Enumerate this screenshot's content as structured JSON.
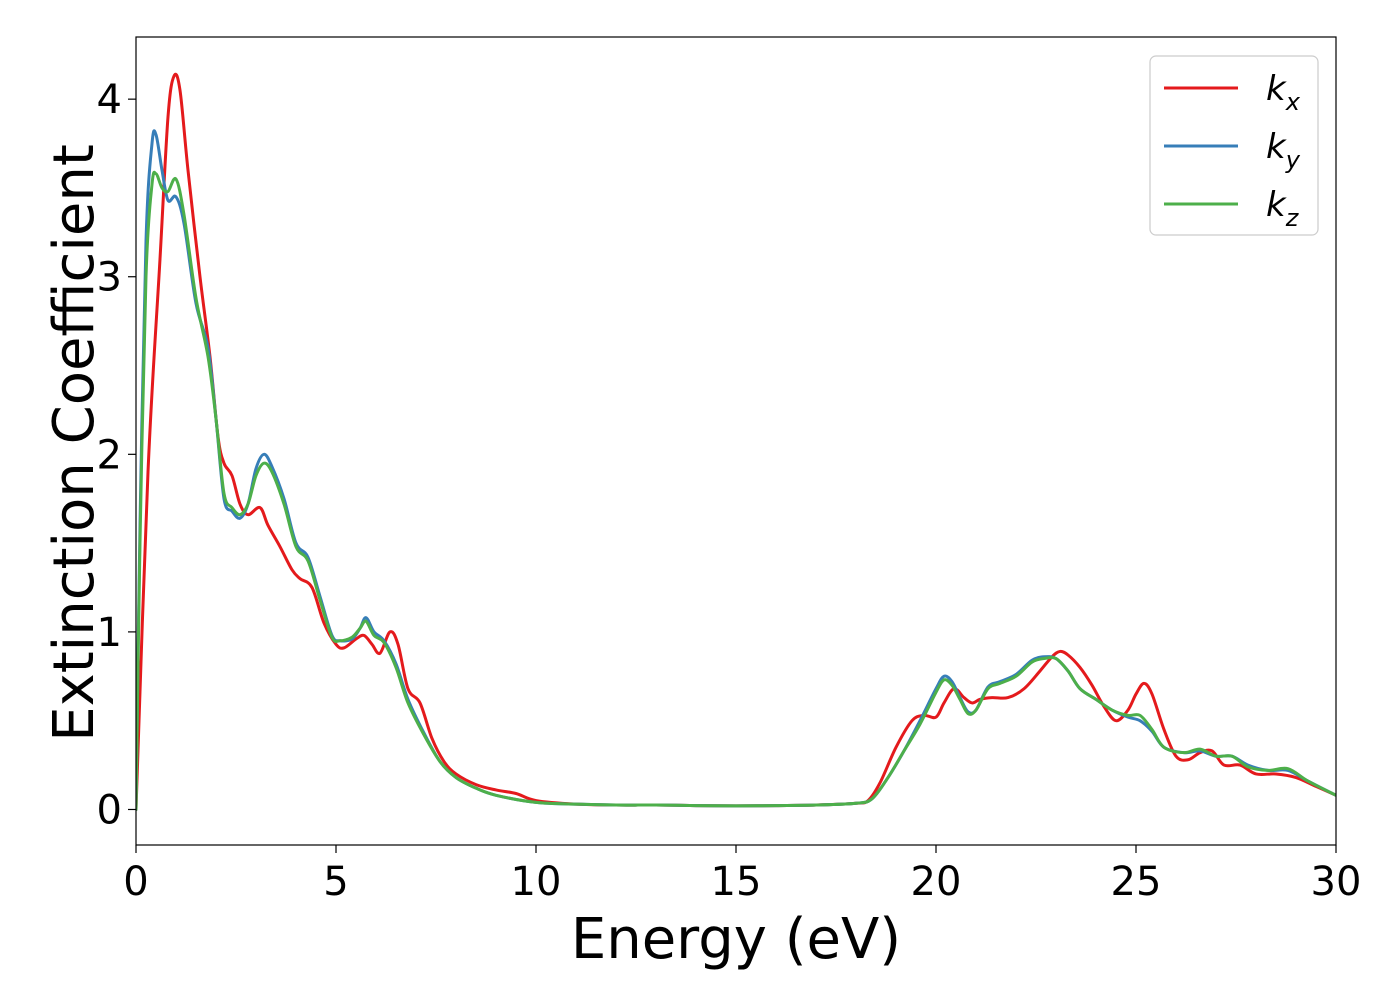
{
  "chart_data": {
    "type": "line",
    "title": "",
    "xlabel": "Energy (eV)",
    "ylabel": "Extinction Coefficient",
    "xlim": [
      0,
      30
    ],
    "ylim": [
      -0.2,
      4.35
    ],
    "xticks": [
      0,
      5,
      10,
      15,
      20,
      25,
      30
    ],
    "xtick_labels": [
      "0",
      "5",
      "10",
      "15",
      "20",
      "25",
      "30"
    ],
    "yticks": [
      0,
      1,
      2,
      3,
      4
    ],
    "ytick_labels": [
      "0",
      "1",
      "2",
      "3",
      "4"
    ],
    "grid": false,
    "legend": {
      "position": "top-right"
    },
    "series": [
      {
        "name": "k_x",
        "label_base": "k",
        "label_sub": "x",
        "color": "#e41a1c",
        "points": [
          [
            0,
            0
          ],
          [
            0.3,
            1.9
          ],
          [
            0.6,
            3.1
          ],
          [
            0.8,
            3.9
          ],
          [
            0.95,
            4.13
          ],
          [
            1.1,
            4.05
          ],
          [
            1.3,
            3.6
          ],
          [
            1.6,
            3.0
          ],
          [
            1.85,
            2.55
          ],
          [
            2.05,
            2.1
          ],
          [
            2.2,
            1.95
          ],
          [
            2.4,
            1.88
          ],
          [
            2.6,
            1.72
          ],
          [
            2.8,
            1.66
          ],
          [
            3.1,
            1.7
          ],
          [
            3.3,
            1.6
          ],
          [
            3.6,
            1.48
          ],
          [
            3.9,
            1.35
          ],
          [
            4.1,
            1.3
          ],
          [
            4.4,
            1.25
          ],
          [
            4.7,
            1.05
          ],
          [
            5.0,
            0.93
          ],
          [
            5.2,
            0.91
          ],
          [
            5.5,
            0.96
          ],
          [
            5.7,
            0.98
          ],
          [
            5.9,
            0.93
          ],
          [
            6.1,
            0.88
          ],
          [
            6.35,
            1.0
          ],
          [
            6.55,
            0.93
          ],
          [
            6.8,
            0.68
          ],
          [
            7.1,
            0.6
          ],
          [
            7.4,
            0.4
          ],
          [
            7.7,
            0.27
          ],
          [
            8.0,
            0.2
          ],
          [
            8.5,
            0.14
          ],
          [
            9.0,
            0.11
          ],
          [
            9.5,
            0.09
          ],
          [
            10,
            0.05
          ],
          [
            11,
            0.03
          ],
          [
            12,
            0.025
          ],
          [
            13,
            0.025
          ],
          [
            14,
            0.022
          ],
          [
            15,
            0.02
          ],
          [
            16,
            0.022
          ],
          [
            17,
            0.025
          ],
          [
            18,
            0.035
          ],
          [
            18.3,
            0.05
          ],
          [
            18.6,
            0.15
          ],
          [
            19.0,
            0.35
          ],
          [
            19.4,
            0.5
          ],
          [
            19.7,
            0.53
          ],
          [
            20.0,
            0.52
          ],
          [
            20.2,
            0.6
          ],
          [
            20.45,
            0.68
          ],
          [
            20.7,
            0.63
          ],
          [
            20.9,
            0.6
          ],
          [
            21.1,
            0.62
          ],
          [
            21.4,
            0.63
          ],
          [
            21.8,
            0.63
          ],
          [
            22.2,
            0.68
          ],
          [
            22.6,
            0.78
          ],
          [
            22.9,
            0.86
          ],
          [
            23.1,
            0.89
          ],
          [
            23.3,
            0.87
          ],
          [
            23.6,
            0.8
          ],
          [
            23.9,
            0.7
          ],
          [
            24.2,
            0.58
          ],
          [
            24.5,
            0.5
          ],
          [
            24.8,
            0.56
          ],
          [
            25.0,
            0.65
          ],
          [
            25.2,
            0.71
          ],
          [
            25.4,
            0.65
          ],
          [
            25.7,
            0.45
          ],
          [
            26.0,
            0.3
          ],
          [
            26.3,
            0.28
          ],
          [
            26.6,
            0.32
          ],
          [
            26.9,
            0.33
          ],
          [
            27.2,
            0.25
          ],
          [
            27.6,
            0.25
          ],
          [
            28.0,
            0.2
          ],
          [
            28.5,
            0.2
          ],
          [
            29.0,
            0.18
          ],
          [
            29.5,
            0.13
          ],
          [
            30,
            0.08
          ]
        ]
      },
      {
        "name": "k_y",
        "label_base": "k",
        "label_sub": "y",
        "color": "#377eb8",
        "points": [
          [
            0,
            0
          ],
          [
            0.1,
            1.6
          ],
          [
            0.25,
            3.2
          ],
          [
            0.4,
            3.75
          ],
          [
            0.5,
            3.8
          ],
          [
            0.65,
            3.6
          ],
          [
            0.8,
            3.43
          ],
          [
            1.0,
            3.45
          ],
          [
            1.2,
            3.3
          ],
          [
            1.5,
            2.85
          ],
          [
            1.8,
            2.6
          ],
          [
            2.0,
            2.2
          ],
          [
            2.2,
            1.75
          ],
          [
            2.4,
            1.68
          ],
          [
            2.6,
            1.64
          ],
          [
            2.8,
            1.72
          ],
          [
            3.0,
            1.92
          ],
          [
            3.2,
            2.0
          ],
          [
            3.4,
            1.93
          ],
          [
            3.7,
            1.75
          ],
          [
            4.0,
            1.5
          ],
          [
            4.3,
            1.42
          ],
          [
            4.6,
            1.2
          ],
          [
            4.9,
            0.98
          ],
          [
            5.1,
            0.95
          ],
          [
            5.4,
            0.96
          ],
          [
            5.6,
            1.02
          ],
          [
            5.75,
            1.08
          ],
          [
            5.95,
            1.0
          ],
          [
            6.2,
            0.95
          ],
          [
            6.5,
            0.82
          ],
          [
            6.8,
            0.62
          ],
          [
            7.2,
            0.43
          ],
          [
            7.6,
            0.27
          ],
          [
            8.0,
            0.18
          ],
          [
            8.5,
            0.12
          ],
          [
            9.0,
            0.08
          ],
          [
            10,
            0.04
          ],
          [
            11,
            0.03
          ],
          [
            12,
            0.025
          ],
          [
            13,
            0.025
          ],
          [
            14,
            0.022
          ],
          [
            15,
            0.02
          ],
          [
            16,
            0.022
          ],
          [
            17,
            0.025
          ],
          [
            18,
            0.035
          ],
          [
            18.4,
            0.06
          ],
          [
            18.8,
            0.18
          ],
          [
            19.2,
            0.33
          ],
          [
            19.6,
            0.5
          ],
          [
            20.0,
            0.68
          ],
          [
            20.2,
            0.75
          ],
          [
            20.4,
            0.72
          ],
          [
            20.6,
            0.63
          ],
          [
            20.8,
            0.55
          ],
          [
            21.0,
            0.56
          ],
          [
            21.3,
            0.69
          ],
          [
            21.6,
            0.72
          ],
          [
            22.0,
            0.76
          ],
          [
            22.4,
            0.84
          ],
          [
            22.7,
            0.86
          ],
          [
            23.0,
            0.85
          ],
          [
            23.3,
            0.78
          ],
          [
            23.6,
            0.68
          ],
          [
            24.0,
            0.62
          ],
          [
            24.4,
            0.56
          ],
          [
            24.8,
            0.52
          ],
          [
            25.1,
            0.5
          ],
          [
            25.4,
            0.44
          ],
          [
            25.7,
            0.35
          ],
          [
            26.2,
            0.32
          ],
          [
            26.6,
            0.33
          ],
          [
            27.0,
            0.3
          ],
          [
            27.4,
            0.3
          ],
          [
            27.8,
            0.25
          ],
          [
            28.3,
            0.22
          ],
          [
            28.8,
            0.22
          ],
          [
            29.3,
            0.16
          ],
          [
            30,
            0.08
          ]
        ]
      },
      {
        "name": "k_z",
        "label_base": "k",
        "label_sub": "z",
        "color": "#4daf4a",
        "points": [
          [
            0,
            0
          ],
          [
            0.1,
            1.5
          ],
          [
            0.25,
            3.0
          ],
          [
            0.4,
            3.52
          ],
          [
            0.5,
            3.58
          ],
          [
            0.65,
            3.5
          ],
          [
            0.8,
            3.48
          ],
          [
            1.0,
            3.55
          ],
          [
            1.2,
            3.35
          ],
          [
            1.5,
            2.88
          ],
          [
            1.8,
            2.55
          ],
          [
            2.0,
            2.2
          ],
          [
            2.2,
            1.78
          ],
          [
            2.4,
            1.7
          ],
          [
            2.6,
            1.66
          ],
          [
            2.8,
            1.72
          ],
          [
            3.0,
            1.88
          ],
          [
            3.2,
            1.95
          ],
          [
            3.4,
            1.9
          ],
          [
            3.7,
            1.72
          ],
          [
            4.0,
            1.48
          ],
          [
            4.3,
            1.4
          ],
          [
            4.6,
            1.18
          ],
          [
            4.9,
            0.97
          ],
          [
            5.1,
            0.95
          ],
          [
            5.4,
            0.97
          ],
          [
            5.6,
            1.02
          ],
          [
            5.75,
            1.06
          ],
          [
            5.95,
            0.98
          ],
          [
            6.2,
            0.94
          ],
          [
            6.5,
            0.8
          ],
          [
            6.8,
            0.6
          ],
          [
            7.2,
            0.42
          ],
          [
            7.6,
            0.27
          ],
          [
            8.0,
            0.18
          ],
          [
            8.5,
            0.12
          ],
          [
            9.0,
            0.08
          ],
          [
            10,
            0.04
          ],
          [
            11,
            0.03
          ],
          [
            12,
            0.025
          ],
          [
            13,
            0.025
          ],
          [
            14,
            0.022
          ],
          [
            15,
            0.02
          ],
          [
            16,
            0.022
          ],
          [
            17,
            0.025
          ],
          [
            18,
            0.035
          ],
          [
            18.4,
            0.06
          ],
          [
            18.8,
            0.18
          ],
          [
            19.2,
            0.33
          ],
          [
            19.6,
            0.48
          ],
          [
            20.0,
            0.66
          ],
          [
            20.2,
            0.73
          ],
          [
            20.4,
            0.7
          ],
          [
            20.6,
            0.62
          ],
          [
            20.8,
            0.54
          ],
          [
            21.0,
            0.56
          ],
          [
            21.3,
            0.68
          ],
          [
            21.6,
            0.71
          ],
          [
            22.0,
            0.75
          ],
          [
            22.4,
            0.83
          ],
          [
            22.7,
            0.85
          ],
          [
            23.0,
            0.85
          ],
          [
            23.3,
            0.78
          ],
          [
            23.6,
            0.68
          ],
          [
            24.0,
            0.62
          ],
          [
            24.4,
            0.56
          ],
          [
            24.8,
            0.53
          ],
          [
            25.1,
            0.53
          ],
          [
            25.4,
            0.45
          ],
          [
            25.7,
            0.35
          ],
          [
            26.2,
            0.32
          ],
          [
            26.6,
            0.34
          ],
          [
            27.0,
            0.3
          ],
          [
            27.4,
            0.3
          ],
          [
            27.8,
            0.24
          ],
          [
            28.3,
            0.22
          ],
          [
            28.8,
            0.23
          ],
          [
            29.3,
            0.16
          ],
          [
            30,
            0.08
          ]
        ]
      }
    ]
  }
}
